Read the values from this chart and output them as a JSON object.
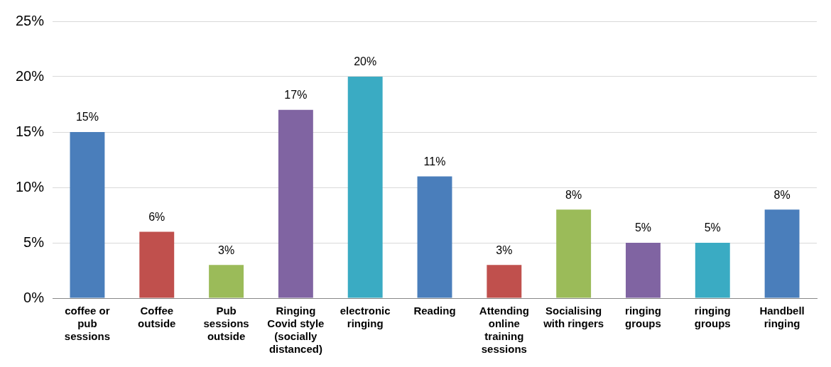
{
  "chart_data": {
    "type": "bar",
    "categories": [
      "coffee or pub sessions",
      "Coffee outside",
      "Pub sessions outside",
      "Ringing Covid style (socially distanced)",
      "electronic ringing",
      "Reading",
      "Attending online training sessions",
      "Socialising with ringers",
      "ringing groups",
      "ringing groups",
      "Handbell ringing"
    ],
    "values": [
      15,
      6,
      3,
      17,
      20,
      11,
      3,
      8,
      5,
      5,
      8
    ],
    "colors": [
      "#4a7ebb",
      "#c0504d",
      "#9bbb59",
      "#8064a2",
      "#3aabc3",
      "#4a7ebb",
      "#c0504d",
      "#9bbb59",
      "#8064a2",
      "#3aabc3",
      "#4a7ebb"
    ],
    "value_labels": [
      "15%",
      "6%",
      "3%",
      "17%",
      "20%",
      "11%",
      "3%",
      "8%",
      "5%",
      "5%",
      "8%"
    ],
    "ylim": [
      0,
      25
    ],
    "yticks": [
      {
        "value": 0,
        "label": "0%"
      },
      {
        "value": 5,
        "label": "5%"
      },
      {
        "value": 10,
        "label": "10%"
      },
      {
        "value": 15,
        "label": "15%"
      },
      {
        "value": 20,
        "label": "20%"
      },
      {
        "value": 25,
        "label": "25%"
      }
    ],
    "grid": "y",
    "legend": false
  }
}
